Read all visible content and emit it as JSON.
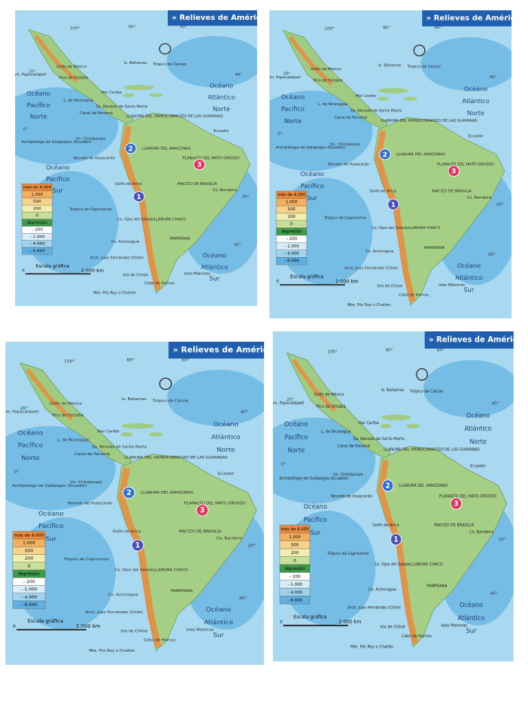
{
  "map": {
    "title": "» Relieves de América La",
    "oceans": [
      [
        "Océano",
        "Pacífico",
        "Norte"
      ],
      [
        "Océano",
        "Atlántico",
        "Norte"
      ],
      [
        "Océano",
        "Pacífico",
        "Sur"
      ],
      [
        "Océano",
        "Atlántico",
        "Sur"
      ]
    ],
    "coordinates": [
      "100°",
      "80°",
      "60°",
      "40°",
      "20°",
      "0°",
      "20°",
      "40°"
    ],
    "places": [
      "Golfo de México",
      "Is. Bahamas",
      "Trópico de Cáncer",
      "Mar Caribe",
      "L. de Nicaragua",
      "Canal de Panamá",
      "Archipiélago de Galápagos (Ecuador)",
      "Vn. Chimborazo",
      "Nevado de Huascarán",
      "LLANURA DEL ORINOCO",
      "MACIZO DE LAS GUAYANAS",
      "LLANURA DEL AMAZONAS",
      "PLANALTO DEL MATO GROSSO",
      "MACIZO DE BRASILIA",
      "Ecuador",
      "Golfo de Arica",
      "Trópico de Capricornio",
      "Co. Ojos del Salado",
      "LLANURA CHACO",
      "PAMPEANA",
      "Co. Aconcagua",
      "Arch. Juan Fernández (Chile)",
      "Isla de Chiloé",
      "Mte. Fitz Roy o Chaltén",
      "Islas Malvinas",
      "Cabo de Hornos",
      "Vn. Popocatépetl",
      "Pico de Orizaba",
      "Sa. Nevada de Santa Marta",
      "Co. Bandeira"
    ],
    "legend_title": "más de 4.000",
    "legend": [
      "1.000",
      "500",
      "200",
      "0",
      "depresión",
      "– 200",
      "– 1.000",
      "– 4.000",
      "– 6.000"
    ],
    "markers": [
      "1",
      "2",
      "3"
    ],
    "scale": {
      "title": "Escala gráfica",
      "start": "0",
      "end": "2.000 km"
    }
  }
}
